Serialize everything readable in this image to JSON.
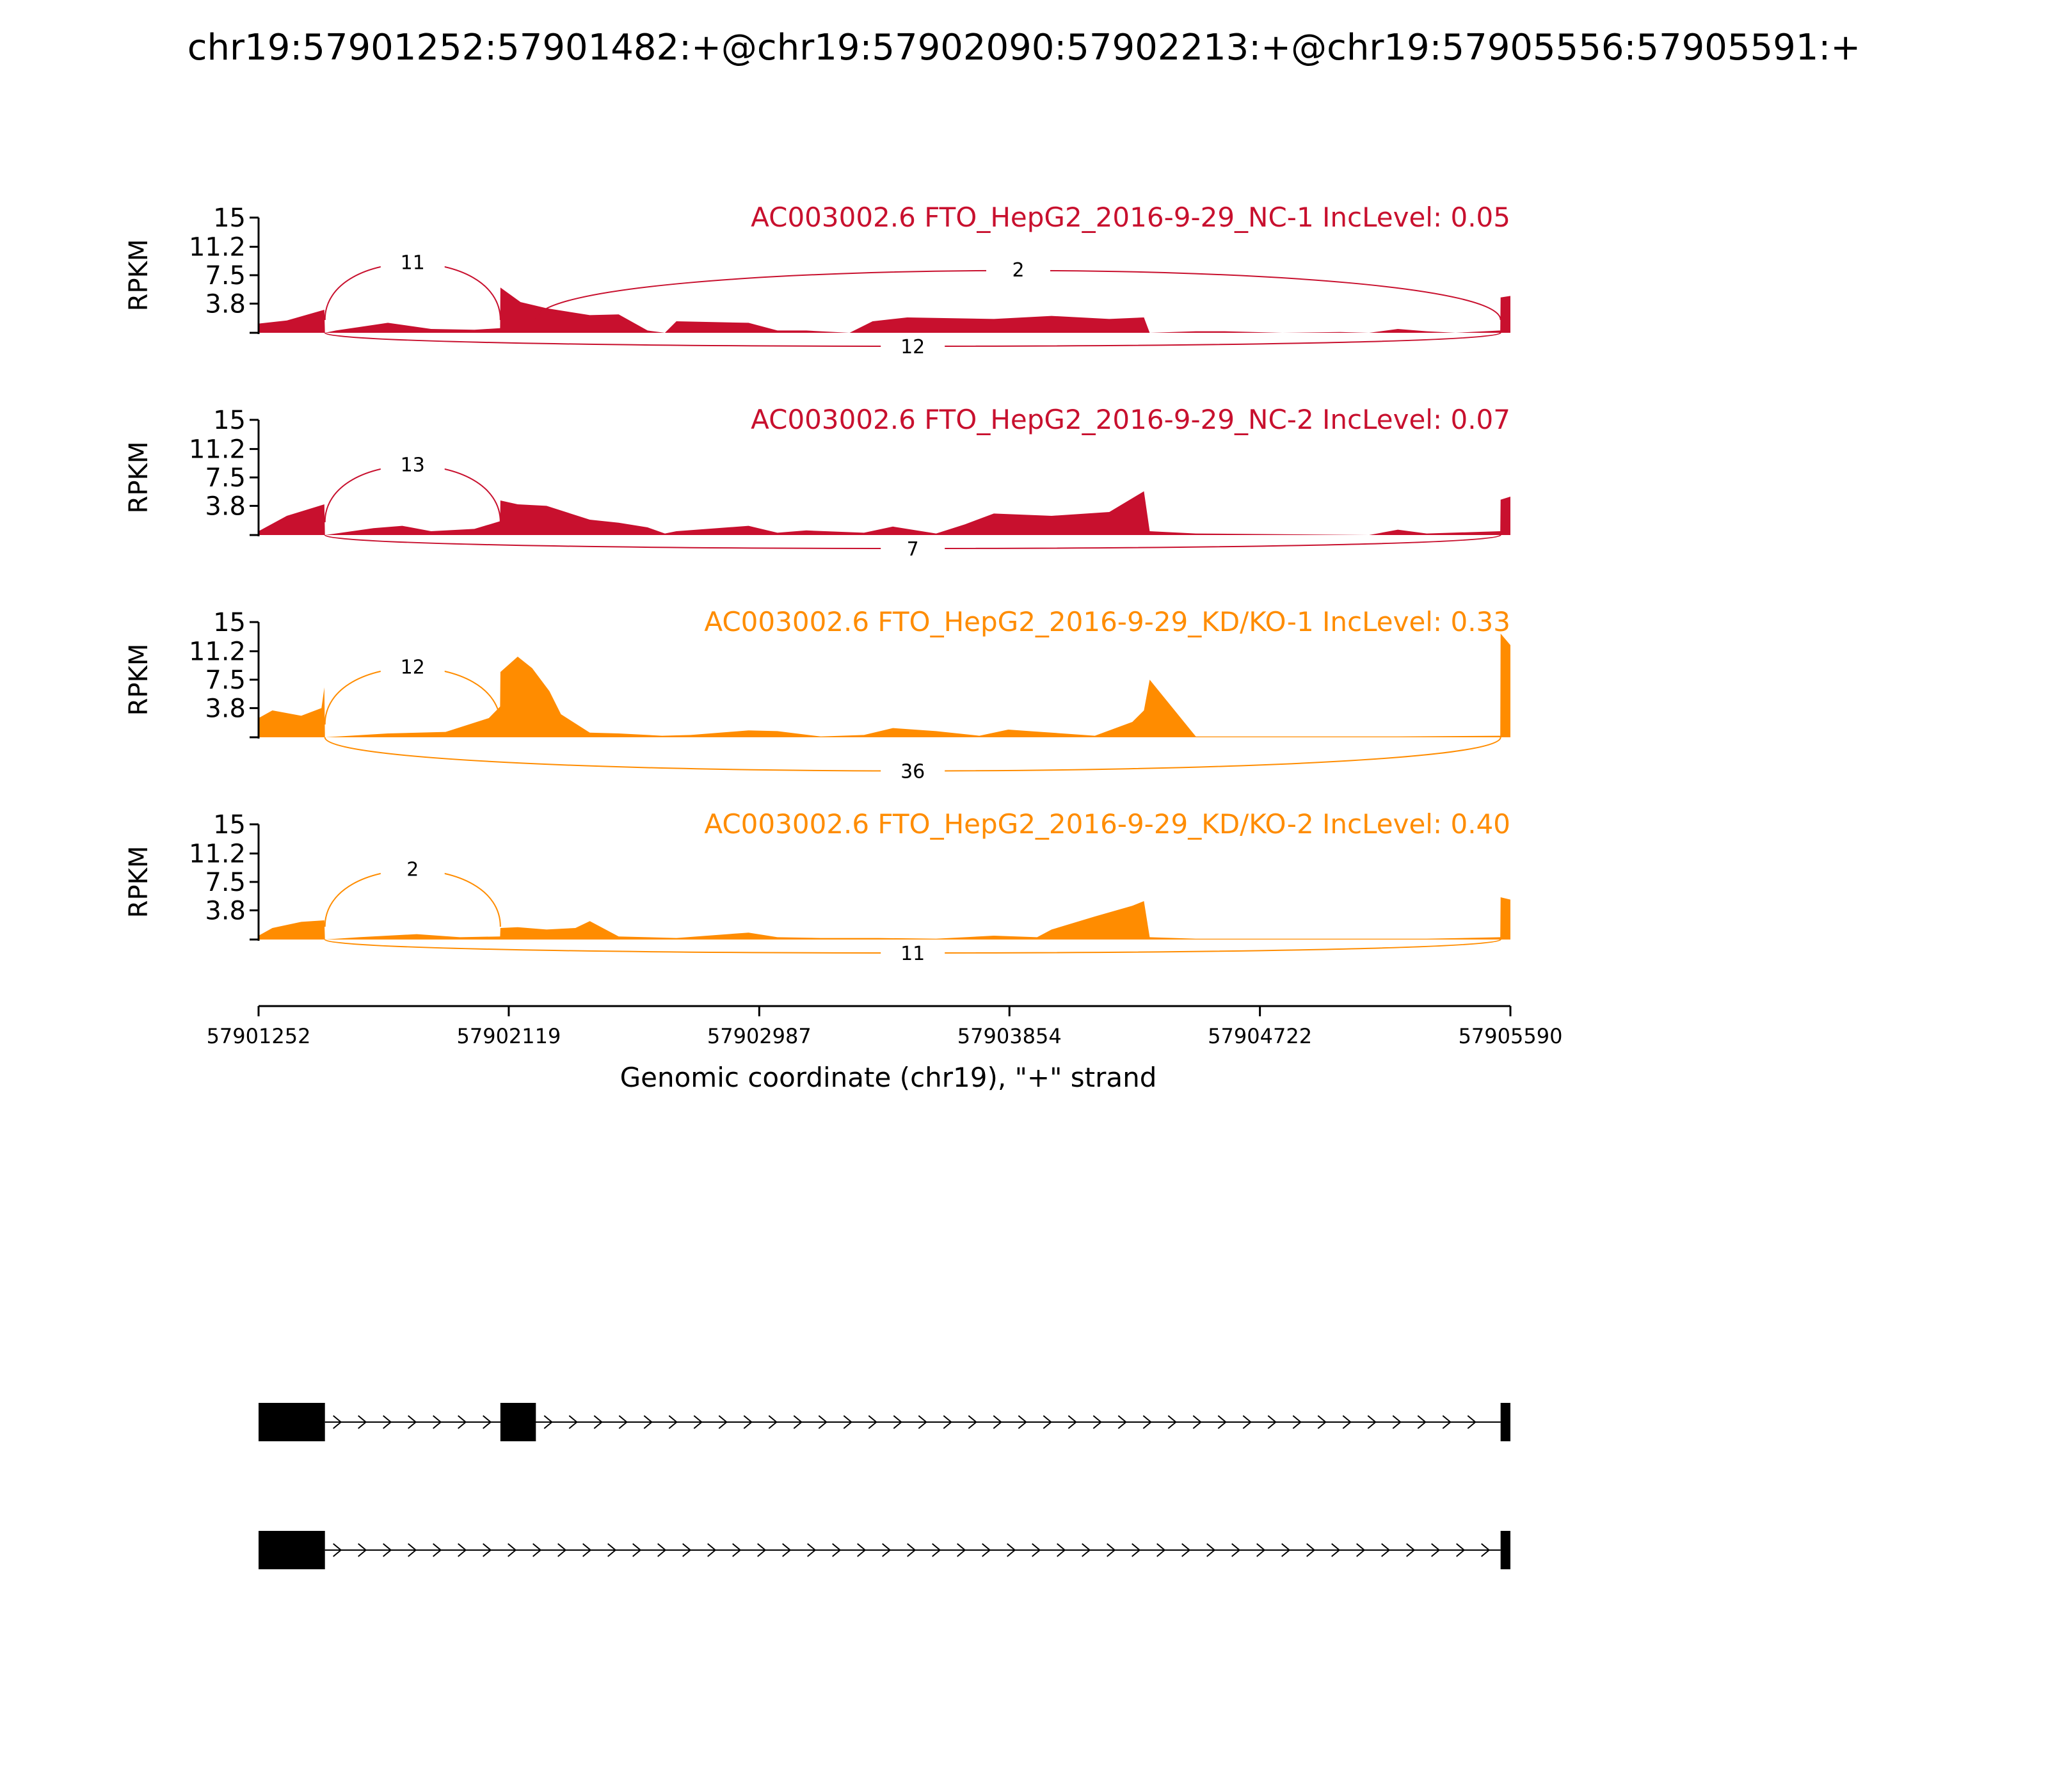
{
  "title": "chr19:57901252:57901482:+@chr19:57902090:57902213:+@chr19:57905556:57905591:+",
  "chart_data": {
    "type": "area",
    "title": "chr19:57901252:57901482:+@chr19:57902090:57902213:+@chr19:57905556:57905591:+",
    "xlabel": "Genomic coordinate (chr19), \"+\" strand",
    "ylabel": "RPKM",
    "xlim": [
      57901252,
      57905590
    ],
    "ylim": [
      0,
      15
    ],
    "x_ticks": [
      "57901252",
      "57902119",
      "57902987",
      "57903854",
      "57904722",
      "57905590"
    ],
    "y_ticks": [
      "15",
      "11.2",
      "7.5",
      "3.8"
    ],
    "series": [
      {
        "name": "AC003002.6 FTO_HepG2_2016-9-29_NC-1 IncLevel: 0.05",
        "color": "#c8102e",
        "x": [
          57901252,
          57901350,
          57901480,
          57901482,
          57901520,
          57901700,
          57901850,
          57902000,
          57902089,
          57902090,
          57902160,
          57902250,
          57902400,
          57902500,
          57902600,
          57902660,
          57902700,
          57902950,
          57903050,
          57903150,
          57903300,
          57903380,
          57903500,
          57903800,
          57904000,
          57904200,
          57904320,
          57904340,
          57904500,
          57904600,
          57904800,
          57905000,
          57905100,
          57905200,
          57905300,
          57905400,
          57905555,
          57905556,
          57905590
        ],
        "y": [
          1.2,
          1.6,
          3.0,
          0.0,
          0.3,
          1.3,
          0.5,
          0.4,
          0.6,
          5.9,
          4.0,
          3.2,
          2.3,
          2.4,
          0.3,
          0.0,
          1.5,
          1.3,
          0.3,
          0.3,
          0.0,
          1.5,
          2.0,
          1.8,
          2.2,
          1.8,
          2.0,
          0.0,
          0.2,
          0.2,
          0.0,
          0.1,
          0.0,
          0.5,
          0.2,
          0.0,
          0.3,
          4.6,
          4.8
        ]
      },
      {
        "name": "AC003002.6 FTO_HepG2_2016-9-29_NC-2 IncLevel: 0.07",
        "color": "#c8102e",
        "x": [
          57901252,
          57901350,
          57901480,
          57901482,
          57901650,
          57901750,
          57901850,
          57902000,
          57902089,
          57902090,
          57902150,
          57902250,
          57902400,
          57902500,
          57902600,
          57902660,
          57902700,
          57902950,
          57903050,
          57903150,
          57903350,
          57903450,
          57903600,
          57903700,
          57903800,
          57904000,
          57904200,
          57904320,
          57904340,
          57904500,
          57904800,
          57905100,
          57905200,
          57905300,
          57905555,
          57905556,
          57905590
        ],
        "y": [
          0.5,
          2.5,
          4.0,
          0.0,
          0.9,
          1.2,
          0.5,
          0.8,
          1.8,
          4.5,
          4.0,
          3.8,
          2.0,
          1.6,
          1.0,
          0.2,
          0.5,
          1.2,
          0.3,
          0.6,
          0.3,
          1.1,
          0.2,
          1.4,
          2.8,
          2.5,
          3.0,
          5.7,
          0.5,
          0.2,
          0.1,
          0.0,
          0.7,
          0.2,
          0.5,
          4.6,
          5.0
        ]
      },
      {
        "name": "AC003002.6 FTO_HepG2_2016-9-29_KD/KO-1 IncLevel: 0.33",
        "color": "#ff8c00",
        "x": [
          57901252,
          57901300,
          57901400,
          57901470,
          57901480,
          57901482,
          57901700,
          57901900,
          57902050,
          57902089,
          57902090,
          57902150,
          57902200,
          57902260,
          57902300,
          57902400,
          57902500,
          57902650,
          57902750,
          57902950,
          57903050,
          57903200,
          57903350,
          57903450,
          57903600,
          57903750,
          57903850,
          57904000,
          57904150,
          57904280,
          57904320,
          57904340,
          57904500,
          57904800,
          57905200,
          57905555,
          57905556,
          57905590
        ],
        "y": [
          2.5,
          3.5,
          2.8,
          3.8,
          6.5,
          0.0,
          0.5,
          0.7,
          2.5,
          4.0,
          8.5,
          10.5,
          9.0,
          6.0,
          3.0,
          0.6,
          0.5,
          0.2,
          0.3,
          0.9,
          0.8,
          0.1,
          0.3,
          1.2,
          0.8,
          0.2,
          1.0,
          0.6,
          0.2,
          2.0,
          3.5,
          7.5,
          0.1,
          0.1,
          0.1,
          0.2,
          13.5,
          12.0
        ]
      },
      {
        "name": "AC003002.6 FTO_HepG2_2016-9-29_KD/KO-2 IncLevel: 0.40",
        "color": "#ff8c00",
        "x": [
          57901252,
          57901300,
          57901400,
          57901480,
          57901482,
          57901600,
          57901800,
          57901950,
          57902089,
          57902090,
          57902150,
          57902250,
          57902350,
          57902400,
          57902500,
          57902600,
          57902700,
          57902950,
          57903050,
          57903200,
          57903400,
          57903600,
          57903800,
          57903950,
          57904000,
          57904150,
          57904280,
          57904320,
          57904340,
          57904500,
          57904800,
          57905100,
          57905300,
          57905555,
          57905556,
          57905590
        ],
        "y": [
          0.5,
          1.5,
          2.3,
          2.5,
          0.0,
          0.3,
          0.7,
          0.3,
          0.4,
          1.5,
          1.6,
          1.3,
          1.5,
          2.4,
          0.4,
          0.3,
          0.2,
          0.9,
          0.3,
          0.2,
          0.2,
          0.1,
          0.5,
          0.3,
          1.3,
          3.0,
          4.4,
          5.0,
          0.3,
          0.1,
          0.1,
          0.1,
          0.1,
          0.3,
          5.5,
          5.2
        ]
      }
    ],
    "junctions": [
      [
        {
          "label": "11",
          "from": 57901482,
          "to": 57902090,
          "side": "above"
        },
        {
          "label": "2",
          "from": 57902213,
          "to": 57905556,
          "side": "above"
        },
        {
          "label": "12",
          "from": 57901482,
          "to": 57905556,
          "side": "below"
        }
      ],
      [
        {
          "label": "13",
          "from": 57901482,
          "to": 57902090,
          "side": "above"
        },
        {
          "label": "7",
          "from": 57901482,
          "to": 57905556,
          "side": "below"
        }
      ],
      [
        {
          "label": "12",
          "from": 57901482,
          "to": 57902090,
          "side": "above"
        },
        {
          "label": "36",
          "from": 57901482,
          "to": 57905556,
          "side": "below"
        }
      ],
      [
        {
          "label": "2",
          "from": 57901482,
          "to": 57902090,
          "side": "above"
        },
        {
          "label": "11",
          "from": 57901482,
          "to": 57905556,
          "side": "below"
        }
      ]
    ],
    "transcripts": [
      {
        "exons": [
          [
            57901252,
            57901482
          ],
          [
            57902090,
            57902213
          ],
          [
            57905556,
            57905590
          ]
        ]
      },
      {
        "exons": [
          [
            57901252,
            57901482
          ],
          [
            57905556,
            57905590
          ]
        ]
      }
    ]
  }
}
